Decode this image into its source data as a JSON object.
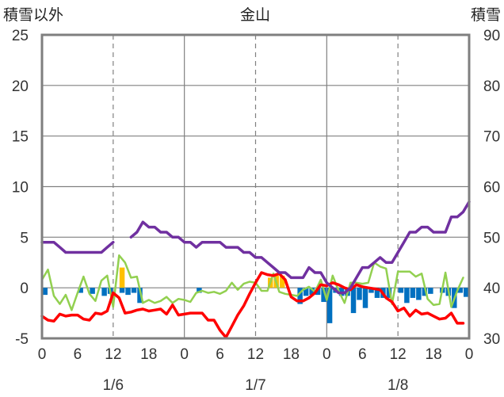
{
  "chart_data": {
    "type": "line",
    "title": "金山",
    "left_axis_title": "積雪以外",
    "right_axis_title": "積雪",
    "left_axis": {
      "min": -5,
      "max": 25,
      "ticks": [
        "-5",
        "0",
        "5",
        "10",
        "15",
        "20",
        "25"
      ]
    },
    "right_axis": {
      "min": 30,
      "max": 90,
      "ticks": [
        "30",
        "40",
        "50",
        "60",
        "70",
        "80",
        "90"
      ]
    },
    "hour_ticks": [
      "0",
      "6",
      "12",
      "18",
      "0",
      "6",
      "12",
      "18",
      "0",
      "6",
      "12",
      "18",
      "0"
    ],
    "day_labels": [
      "1/6",
      "1/7",
      "1/8"
    ],
    "grid": true,
    "hours_total": 72,
    "colors": {
      "snow_depth": "#7030a0",
      "temperature": "#ff0000",
      "humidity_line": "#92d050",
      "bar_blue": "#0070c0",
      "bar_yellow": "#ffc000"
    },
    "snow_depth": [
      49,
      49,
      49,
      48,
      47,
      47,
      47,
      47,
      47,
      47,
      47,
      48,
      49,
      null,
      null,
      50,
      51,
      53,
      52,
      52,
      51,
      51,
      50,
      50,
      49,
      49,
      48,
      49,
      49,
      49,
      49,
      48,
      48,
      48,
      47,
      47,
      46,
      46,
      45,
      44,
      43,
      43,
      42,
      42,
      42,
      44,
      43,
      43,
      41,
      40,
      39,
      39,
      40,
      42,
      44,
      44,
      45,
      46,
      45,
      45,
      47,
      49,
      51,
      51,
      52,
      52,
      51,
      51,
      51,
      54,
      54,
      55,
      57
    ],
    "temperature": [
      -2.8,
      -3.2,
      -3.3,
      -2.6,
      -2.8,
      -2.7,
      -2.7,
      -3.1,
      -3.2,
      -2.5,
      -2.6,
      -2.3,
      -0.5,
      -1.0,
      -2.5,
      -2.4,
      -2.2,
      -2.1,
      -2.3,
      -2.2,
      -2.1,
      -2.6,
      -1.7,
      -2.7,
      -2.6,
      -2.5,
      -2.5,
      -2.5,
      -3.2,
      -3.2,
      -4.2,
      -4.9,
      -3.8,
      -2.7,
      -1.8,
      -0.6,
      0.5,
      1.5,
      1.3,
      1.2,
      1.4,
      0.8,
      -0.9,
      -1.3,
      -1.3,
      -1.0,
      -0.5,
      0.3,
      0.2,
      0.5,
      0.3,
      0.0,
      -0.2,
      0.3,
      0.1,
      0.0,
      -0.1,
      -0.2,
      -1.0,
      -1.4,
      -2.3,
      -2.0,
      -2.8,
      -2.2,
      -2.6,
      -2.5,
      -2.8,
      -3.1,
      -3.0,
      -2.5,
      -3.5,
      -3.5
    ],
    "humidity_line": [
      0.8,
      1.8,
      -0.8,
      -1.6,
      -0.7,
      -2.2,
      -0.5,
      1.1,
      -0.6,
      -1.3,
      0.7,
      1.2,
      -1.9,
      3.2,
      2.5,
      1.0,
      1.1,
      -1.5,
      -1.2,
      -1.5,
      -1.3,
      -0.9,
      -1.5,
      -1.1,
      -1.2,
      -1.4,
      -0.5,
      -0.3,
      -0.5,
      -0.4,
      -0.6,
      -0.3,
      0.5,
      -0.2,
      0.4,
      0.6,
      0.5,
      -0.3,
      -0.3,
      1.4,
      -0.4,
      -0.6,
      -0.7,
      -0.8,
      -0.2,
      0.1,
      -0.4,
      0.8,
      -1.2,
      1.2,
      -0.3,
      -1.5,
      0.5,
      0.5,
      0.4,
      0.5,
      2.5,
      2.1,
      1.9,
      -1.6,
      1.6,
      1.6,
      1.6,
      1.1,
      1.4,
      -1.1,
      -1.7,
      -1.6,
      1.5,
      -1.9,
      -0.3,
      1.0
    ],
    "bars_blue": [
      -0.7,
      0,
      0,
      0,
      0,
      0,
      -0.5,
      0,
      -0.6,
      0,
      -0.8,
      -0.6,
      0,
      -0.5,
      -0.7,
      -0.5,
      -1.5,
      0,
      0,
      0,
      0,
      0,
      0,
      0,
      0,
      0,
      -0.5,
      0,
      0,
      0,
      0,
      0,
      0,
      0,
      0,
      0,
      0,
      0,
      0,
      0,
      0,
      0,
      0,
      -1.6,
      -0.8,
      -0.7,
      -0.7,
      -1.4,
      -3.5,
      -0.5,
      -0.8,
      -0.8,
      -2.5,
      -1.2,
      -2.0,
      -0.5,
      -1.0,
      -1.0,
      -1.0,
      0,
      -0.5,
      -1.5,
      -1.0,
      -1.2,
      -0.8,
      -0.6,
      0,
      -0.5,
      -0.8,
      -2.0,
      -0.5,
      -0.9
    ],
    "bars_yellow": [
      0,
      0,
      0,
      0,
      0,
      0,
      0,
      0,
      0,
      0,
      0,
      0,
      0,
      2.0,
      0,
      0,
      0,
      0,
      0,
      0,
      0,
      0,
      0,
      0,
      0,
      0,
      0,
      0,
      0,
      0,
      0,
      0,
      0,
      0,
      0,
      0,
      0,
      0,
      1.0,
      1.2,
      1.2,
      0,
      0,
      0,
      0,
      0,
      0,
      0,
      0,
      0,
      0,
      0,
      0,
      0,
      0,
      0,
      0,
      0,
      0,
      0,
      0,
      0,
      0,
      0,
      0,
      0,
      0,
      0,
      0,
      0,
      0,
      0
    ]
  }
}
